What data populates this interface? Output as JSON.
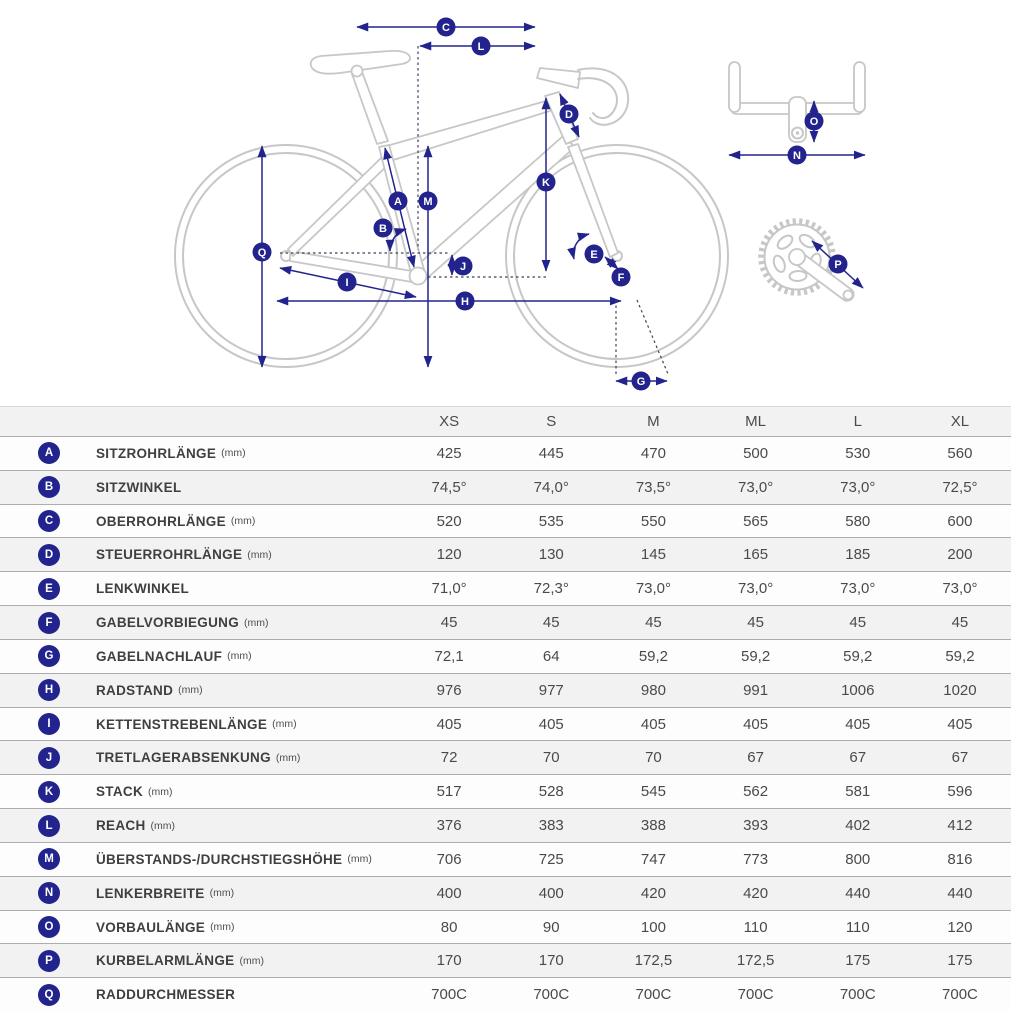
{
  "diagram": {
    "labels": {
      "a": "A",
      "b": "B",
      "c": "C",
      "d": "D",
      "e": "E",
      "f": "F",
      "g": "G",
      "h": "H",
      "i": "I",
      "j": "J",
      "k": "K",
      "l": "L",
      "m": "M",
      "n": "N",
      "o": "O",
      "p": "P",
      "q": "Q"
    }
  },
  "colors": {
    "badge_navy": "#23238e",
    "bike_outline_grey": "#c7c7c7",
    "row_stripe_grey": "#f2f2f2"
  },
  "table": {
    "columns": [
      "XS",
      "S",
      "M",
      "ML",
      "L",
      "XL"
    ],
    "rows": [
      {
        "key": "A",
        "label": "SITZROHRLÄNGE",
        "unit": "(mm)",
        "values": [
          "425",
          "445",
          "470",
          "500",
          "530",
          "560"
        ]
      },
      {
        "key": "B",
        "label": "SITZWINKEL",
        "unit": "",
        "values": [
          "74,5°",
          "74,0°",
          "73,5°",
          "73,0°",
          "73,0°",
          "72,5°"
        ]
      },
      {
        "key": "C",
        "label": "OBERROHRLÄNGE",
        "unit": "(mm)",
        "values": [
          "520",
          "535",
          "550",
          "565",
          "580",
          "600"
        ]
      },
      {
        "key": "D",
        "label": "STEUERROHRLÄNGE",
        "unit": "(mm)",
        "values": [
          "120",
          "130",
          "145",
          "165",
          "185",
          "200"
        ]
      },
      {
        "key": "E",
        "label": "LENKWINKEL",
        "unit": "",
        "values": [
          "71,0°",
          "72,3°",
          "73,0°",
          "73,0°",
          "73,0°",
          "73,0°"
        ]
      },
      {
        "key": "F",
        "label": "GABELVORBIEGUNG",
        "unit": "(mm)",
        "values": [
          "45",
          "45",
          "45",
          "45",
          "45",
          "45"
        ]
      },
      {
        "key": "G",
        "label": "GABELNACHLAUF",
        "unit": "(mm)",
        "values": [
          "72,1",
          "64",
          "59,2",
          "59,2",
          "59,2",
          "59,2"
        ]
      },
      {
        "key": "H",
        "label": "RADSTAND",
        "unit": "(mm)",
        "values": [
          "976",
          "977",
          "980",
          "991",
          "1006",
          "1020"
        ]
      },
      {
        "key": "I",
        "label": "KETTENSTREBENLÄNGE",
        "unit": "(mm)",
        "values": [
          "405",
          "405",
          "405",
          "405",
          "405",
          "405"
        ]
      },
      {
        "key": "J",
        "label": "TRETLAGERABSENKUNG",
        "unit": "(mm)",
        "values": [
          "72",
          "70",
          "70",
          "67",
          "67",
          "67"
        ]
      },
      {
        "key": "K",
        "label": "STACK",
        "unit": "(mm)",
        "values": [
          "517",
          "528",
          "545",
          "562",
          "581",
          "596"
        ]
      },
      {
        "key": "L",
        "label": "REACH",
        "unit": "(mm)",
        "values": [
          "376",
          "383",
          "388",
          "393",
          "402",
          "412"
        ]
      },
      {
        "key": "M",
        "label": "ÜBERSTANDS-/DURCHSTIEGSHÖHE",
        "unit": "(mm)",
        "values": [
          "706",
          "725",
          "747",
          "773",
          "800",
          "816"
        ]
      },
      {
        "key": "N",
        "label": "LENKERBREITE",
        "unit": "(mm)",
        "values": [
          "400",
          "400",
          "420",
          "420",
          "440",
          "440"
        ]
      },
      {
        "key": "O",
        "label": "VORBAULÄNGE",
        "unit": "(mm)",
        "values": [
          "80",
          "90",
          "100",
          "110",
          "110",
          "120"
        ]
      },
      {
        "key": "P",
        "label": "KURBELARMLÄNGE",
        "unit": "(mm)",
        "values": [
          "170",
          "170",
          "172,5",
          "172,5",
          "175",
          "175"
        ]
      },
      {
        "key": "Q",
        "label": "RADDURCHMESSER",
        "unit": "",
        "values": [
          "700C",
          "700C",
          "700C",
          "700C",
          "700C",
          "700C"
        ]
      }
    ]
  }
}
